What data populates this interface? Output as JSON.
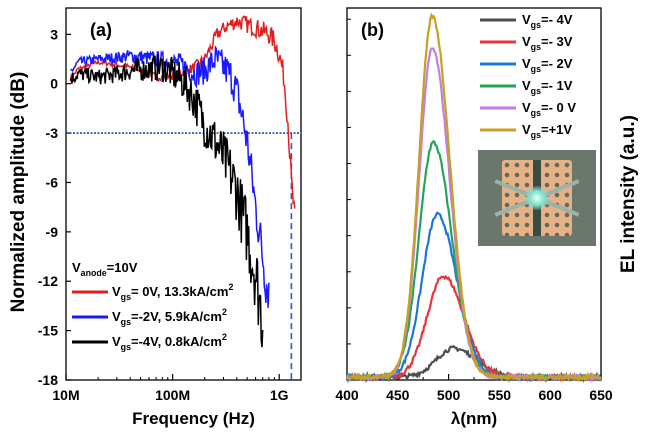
{
  "chart_data": [
    {
      "panel_label": "(a)",
      "type": "line",
      "xlabel": "Frequency (Hz)",
      "ylabel": "Normalized amplitude (dB)",
      "x_scale": "log",
      "xlim": [
        10000000,
        1600000000
      ],
      "ylim": [
        -18,
        4.6
      ],
      "x_ticks": [
        {
          "value": 10000000,
          "label": "10M"
        },
        {
          "value": 100000000,
          "label": "100M"
        },
        {
          "value": 1000000000,
          "label": "1G"
        }
      ],
      "y_ticks": [
        3,
        0,
        -3,
        -6,
        -9,
        -12,
        -15,
        -18
      ],
      "reference_line": {
        "y": -3,
        "style": "dotted",
        "color": "#1f4e9a"
      },
      "cutoff_marker": {
        "x": 1300000000,
        "style": "dashed",
        "color": "#2f4fe0"
      },
      "legend_title": {
        "main": "V",
        "sub": "anode",
        "tail": "=10V"
      },
      "series": [
        {
          "name": "Vgs= 0V, 13.3kA/cm2",
          "legend": {
            "main": "V",
            "sub": "gs",
            "tail": "= 0V, 13.3kA/cm",
            "sup": "2"
          },
          "color": "#e02020",
          "noise": 0.35,
          "x": [
            11000000,
            13000000,
            20000000,
            40000000,
            70000000,
            100000000,
            150000000,
            200000000,
            260000000,
            320000000,
            400000000,
            500000000,
            600000000,
            700000000,
            800000000,
            900000000,
            1000000000,
            1100000000,
            1200000000,
            1300000000,
            1400000000
          ],
          "y": [
            0.3,
            0.9,
            1.3,
            1.0,
            0.4,
            0.5,
            0.9,
            1.5,
            3.0,
            3.5,
            3.8,
            3.6,
            3.4,
            3.2,
            3.0,
            2.6,
            1.8,
            0.5,
            -2.0,
            -6.0,
            -8.3
          ]
        },
        {
          "name": "Vgs=-2V, 5.9kA/cm2",
          "legend": {
            "main": "V",
            "sub": "gs",
            "tail": "=-2V, 5.9kA/cm",
            "sup": "2"
          },
          "color": "#1a1aff",
          "noise": 0.7,
          "x": [
            11000000,
            13000000,
            20000000,
            40000000,
            80000000,
            120000000,
            160000000,
            200000000,
            250000000,
            300000000,
            350000000,
            400000000,
            450000000,
            500000000,
            550000000,
            600000000,
            650000000,
            700000000,
            750000000,
            800000000
          ],
          "y": [
            0.7,
            1.3,
            1.5,
            1.7,
            1.4,
            1.2,
            0.6,
            0.8,
            1.5,
            1.0,
            0.5,
            -0.5,
            -2.0,
            -3.5,
            -5.5,
            -7.5,
            -9.0,
            -10.5,
            -12.0,
            -12.5
          ]
        },
        {
          "name": "Vgs=-4V, 0.8kA/cm2",
          "legend": {
            "main": "V",
            "sub": "gs",
            "tail": "=-4V, 0.8kA/cm",
            "sup": "2"
          },
          "color": "#000000",
          "noise": 1.1,
          "x": [
            11000000,
            13000000,
            20000000,
            40000000,
            80000000,
            100000000,
            130000000,
            160000000,
            200000000,
            250000000,
            300000000,
            350000000,
            400000000,
            450000000,
            500000000,
            550000000,
            600000000,
            650000000,
            700000000
          ],
          "y": [
            0.3,
            0.6,
            0.4,
            0.8,
            1.0,
            0.6,
            0.0,
            -1.0,
            -2.5,
            -3.5,
            -4.5,
            -5.5,
            -6.5,
            -8.0,
            -9.0,
            -10.5,
            -11.5,
            -13.0,
            -14.5
          ]
        }
      ]
    },
    {
      "panel_label": "(b)",
      "type": "line",
      "xlabel": "λ(nm)",
      "ylabel": "EL intensity (a.u.)",
      "xlim": [
        400,
        650
      ],
      "ylim": [
        0,
        1.02
      ],
      "x_ticks": [
        400,
        450,
        500,
        550,
        600,
        650
      ],
      "inset": "device micrograph",
      "series": [
        {
          "name": "Vgs=- 4V",
          "legend": {
            "main": "V",
            "sub": "gs",
            "tail": "=- 4V"
          },
          "color": "#4d4d4d",
          "peak_nm": 505,
          "sigma_left": 17,
          "sigma_right": 22,
          "peak": 0.08
        },
        {
          "name": "Vgs=- 3V",
          "legend": {
            "main": "V",
            "sub": "gs",
            "tail": "=- 3V"
          },
          "color": "#e8353d",
          "peak_nm": 495,
          "sigma_left": 16,
          "sigma_right": 20,
          "peak": 0.28
        },
        {
          "name": "Vgs=- 2V",
          "legend": {
            "main": "V",
            "sub": "gs",
            "tail": "=- 2V"
          },
          "color": "#1f77d4",
          "peak_nm": 489,
          "sigma_left": 15,
          "sigma_right": 19,
          "peak": 0.45
        },
        {
          "name": "Vgs=- 1V",
          "legend": {
            "main": "V",
            "sub": "gs",
            "tail": "=- 1V"
          },
          "color": "#24a35a",
          "peak_nm": 485,
          "sigma_left": 14,
          "sigma_right": 18,
          "peak": 0.65
        },
        {
          "name": "Vgs=- 0 V",
          "legend": {
            "main": "V",
            "sub": "gs",
            "tail": "=- 0 V"
          },
          "color": "#c27fe0",
          "peak_nm": 484,
          "sigma_left": 13,
          "sigma_right": 17,
          "peak": 0.91
        },
        {
          "name": "Vgs=+1V",
          "legend": {
            "main": "V",
            "sub": "gs",
            "tail": "=+1V"
          },
          "color": "#c8a020",
          "peak_nm": 484,
          "sigma_left": 13,
          "sigma_right": 17,
          "peak": 1.0
        }
      ]
    }
  ]
}
